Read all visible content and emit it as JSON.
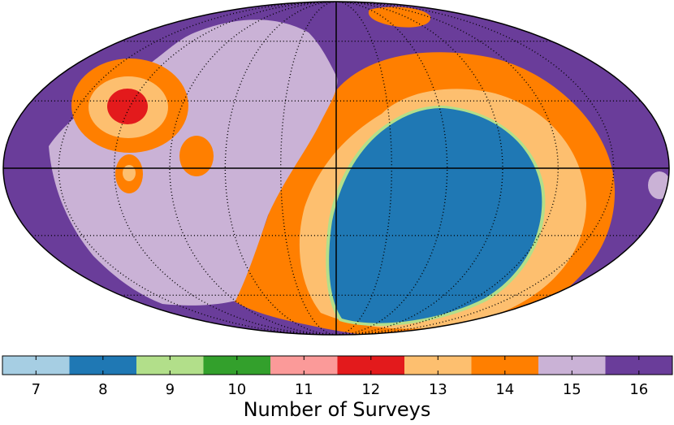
{
  "chart_data": {
    "type": "heatmap",
    "projection": "mollweide",
    "grid": true,
    "regions": [
      {
        "name": "background",
        "value": 16,
        "color": "#6a3d9a"
      },
      {
        "name": "outer-band",
        "value": 14,
        "color": "#ff7f00"
      },
      {
        "name": "middle-band",
        "value": 13,
        "color": "#fdbf6f"
      },
      {
        "name": "inner-band",
        "value": 9,
        "color": "#b2df8a"
      },
      {
        "name": "core",
        "value": 8,
        "color": "#1f78b4"
      },
      {
        "name": "west-lobe",
        "value": 15,
        "color": "#cab2d6"
      },
      {
        "name": "east-spot",
        "value": 15,
        "color": "#cab2d6"
      },
      {
        "name": "hotspot-outer",
        "value": 14,
        "color": "#ff7f00"
      },
      {
        "name": "hotspot-middle",
        "value": 13,
        "color": "#fdbf6f"
      },
      {
        "name": "hotspot-core",
        "value": 12,
        "color": "#e31a1c"
      },
      {
        "name": "small-spot-a",
        "value": 14,
        "color": "#ff7f00"
      },
      {
        "name": "small-spot-b",
        "value": 14,
        "color": "#ff7f00"
      },
      {
        "name": "small-spot-b-core",
        "value": 13,
        "color": "#fdbf6f"
      },
      {
        "name": "top-patch",
        "value": 14,
        "color": "#ff7f00"
      }
    ],
    "colorbar": {
      "label": "Number of Surveys",
      "min": 6.5,
      "max": 16.5,
      "ticks": [
        7,
        8,
        9,
        10,
        11,
        12,
        13,
        14,
        15,
        16
      ],
      "colors": [
        "#a6cee3",
        "#1f78b4",
        "#b2df8a",
        "#33a02c",
        "#fb9a99",
        "#e31a1c",
        "#fdbf6f",
        "#ff7f00",
        "#cab2d6",
        "#6a3d9a"
      ]
    }
  }
}
